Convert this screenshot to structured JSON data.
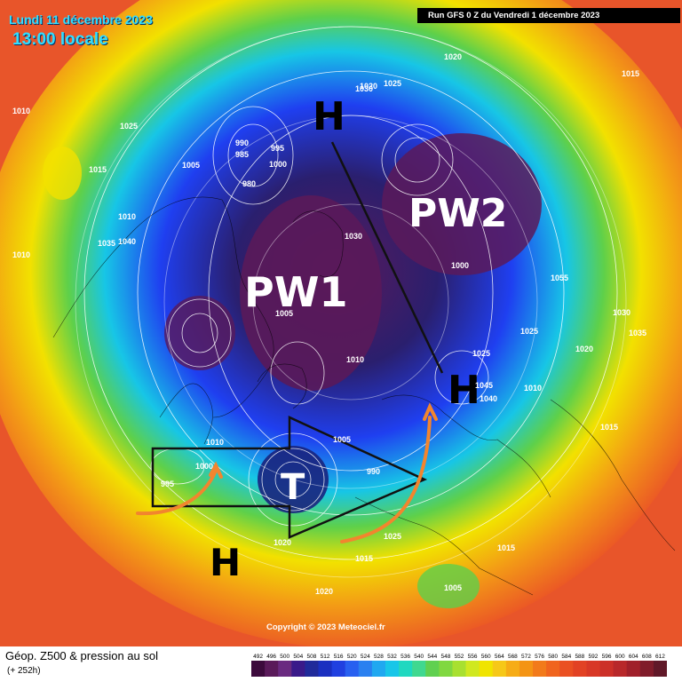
{
  "header": {
    "date": "Lundi 11 décembre 2023",
    "time": "13:00 locale",
    "run": "Run GFS 0 Z du Vendredi 1 décembre 2023"
  },
  "labels": {
    "pw1": "PW1",
    "pw2": "PW2",
    "high": "H",
    "trough": "T"
  },
  "isobars": [
    "1010",
    "1010",
    "1025",
    "1020",
    "1030",
    "1025",
    "1015",
    "1005",
    "990",
    "985",
    "980",
    "1000",
    "995",
    "1010",
    "1040",
    "1035",
    "1030",
    "1005",
    "1000",
    "1025",
    "1045",
    "1040",
    "1055",
    "1025",
    "1035",
    "1030",
    "1020",
    "1015",
    "990",
    "1000",
    "995",
    "1010",
    "1005",
    "1020",
    "1015",
    "1005",
    "1010",
    "1015",
    "1020",
    "1015",
    "1025",
    "1010",
    "1020"
  ],
  "footer": {
    "title": "Géop. Z500 & pression au sol",
    "subtitle": "(+ 252h)",
    "copyright": "Copyright © 2023 Meteociel.fr"
  },
  "colors": {
    "purple": "#5a1a5a",
    "navy": "#1a237e",
    "blue": "#1f3ff0",
    "cyan": "#17c6e6",
    "green": "#5ed04a",
    "yellow": "#f2e100",
    "orange": "#f39a16",
    "red": "#ea4f27",
    "arrow": "#f2852e"
  },
  "scale_values": [
    "492",
    "496",
    "500",
    "504",
    "508",
    "512",
    "516",
    "520",
    "524",
    "528",
    "532",
    "536",
    "540",
    "544",
    "548",
    "552",
    "556",
    "560",
    "564",
    "568",
    "572",
    "576",
    "580",
    "584",
    "588",
    "592",
    "596",
    "600",
    "604",
    "608",
    "612"
  ],
  "scale_colors": [
    "#3c0a3c",
    "#5a1a5a",
    "#6a2a80",
    "#3a1a8a",
    "#202a9a",
    "#1a30c0",
    "#2040e0",
    "#2860f0",
    "#2a80f0",
    "#20a8f0",
    "#18c6e8",
    "#20d8c0",
    "#40d890",
    "#60d050",
    "#80d840",
    "#a8e030",
    "#d0e820",
    "#f0e400",
    "#f6c818",
    "#f6ac16",
    "#f49414",
    "#f27a1a",
    "#f0641e",
    "#ea5022",
    "#e24224",
    "#d83826",
    "#cc3028",
    "#b8282a",
    "#a0202a",
    "#801c2a",
    "#601828"
  ]
}
